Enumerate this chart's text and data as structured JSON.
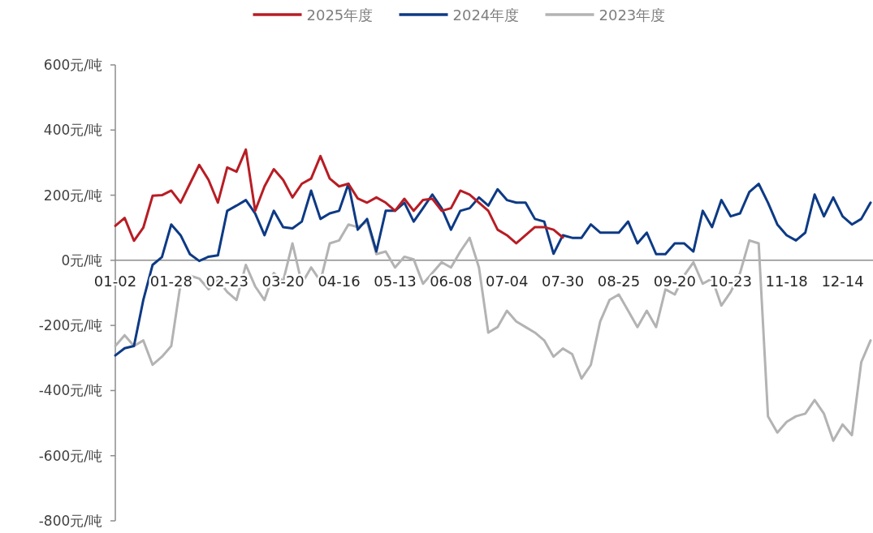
{
  "chart_data": {
    "type": "line",
    "categories": [
      "01-02",
      null,
      null,
      null,
      null,
      null,
      "01-28",
      null,
      null,
      null,
      null,
      null,
      "02-23",
      null,
      null,
      null,
      null,
      null,
      "03-20",
      null,
      null,
      null,
      null,
      null,
      "04-16",
      null,
      null,
      null,
      null,
      null,
      "05-13",
      null,
      null,
      null,
      null,
      null,
      "06-08",
      null,
      null,
      null,
      null,
      null,
      "07-04",
      null,
      null,
      null,
      null,
      null,
      "07-30",
      null,
      null,
      null,
      null,
      null,
      "08-25",
      null,
      null,
      null,
      null,
      null,
      "09-20",
      null,
      null,
      null,
      null,
      null,
      "10-23",
      null,
      null,
      null,
      null,
      null,
      "11-18",
      null,
      null,
      null,
      null,
      null,
      "12-14",
      null,
      null,
      null
    ],
    "series": [
      {
        "name": "2025年度",
        "color": "#b81d24",
        "values": [
          106,
          130,
          60,
          100,
          198,
          200,
          214,
          177,
          235,
          293,
          247,
          177,
          285,
          272,
          340,
          152,
          227,
          280,
          247,
          193,
          235,
          251,
          320,
          251,
          227,
          235,
          190,
          177,
          193,
          177,
          152,
          189,
          152,
          185,
          189,
          152,
          160,
          214,
          202,
          177,
          152,
          94,
          77,
          52,
          77,
          102,
          102,
          94,
          70,
          null,
          null,
          null,
          null,
          null,
          null,
          null,
          null,
          null,
          null,
          null,
          null,
          null,
          null,
          null,
          null,
          null,
          null,
          null,
          null,
          null,
          null,
          null,
          null,
          null,
          null,
          null,
          null,
          null,
          null,
          null,
          null,
          null
        ]
      },
      {
        "name": "2024年度",
        "color": "#0d3a85",
        "values": [
          -292,
          -270,
          -263,
          -122,
          -14,
          10,
          110,
          77,
          19,
          -2,
          11,
          15,
          152,
          168,
          185,
          144,
          77,
          152,
          102,
          98,
          119,
          214,
          127,
          144,
          152,
          235,
          94,
          127,
          27,
          152,
          152,
          177,
          119,
          160,
          202,
          160,
          94,
          152,
          160,
          193,
          168,
          218,
          185,
          177,
          177,
          127,
          119,
          20,
          77,
          69,
          69,
          110,
          85,
          85,
          85,
          119,
          52,
          85,
          19,
          19,
          52,
          52,
          27,
          152,
          102,
          185,
          135,
          144,
          210,
          235,
          177,
          110,
          77,
          61,
          85,
          202,
          135,
          193,
          135,
          110,
          127,
          177
        ]
      },
      {
        "name": "2023年度",
        "color": "#b3b3b3",
        "values": [
          -263,
          -230,
          -263,
          -246,
          -321,
          -296,
          -263,
          -72,
          -47,
          -56,
          -89,
          -60,
          -97,
          -122,
          -14,
          -80,
          -122,
          -39,
          -64,
          52,
          -72,
          -22,
          -64,
          52,
          61,
          110,
          102,
          119,
          19,
          27,
          -22,
          11,
          3,
          -72,
          -39,
          -6,
          -22,
          27,
          69,
          -22,
          -222,
          -205,
          -155,
          -188,
          -205,
          -222,
          -246,
          -296,
          -271,
          -288,
          -363,
          -321,
          -188,
          -122,
          -105,
          -155,
          -205,
          -155,
          -205,
          -89,
          -105,
          -47,
          -6,
          -72,
          -56,
          -139,
          -97,
          -39,
          61,
          52,
          -479,
          -529,
          -496,
          -479,
          -471,
          -429,
          -471,
          -554,
          -504,
          -537,
          -313,
          -246
        ]
      }
    ],
    "ylim": [
      -800,
      600
    ],
    "yticks": [
      {
        "value": -800,
        "label": "-800元/吨"
      },
      {
        "value": -600,
        "label": "-600元/吨"
      },
      {
        "value": -400,
        "label": "-400元/吨"
      },
      {
        "value": -200,
        "label": "-200元/吨"
      },
      {
        "value": 0,
        "label": "0元/吨"
      },
      {
        "value": 200,
        "label": "200元/吨"
      },
      {
        "value": 400,
        "label": "400元/吨"
      },
      {
        "value": 600,
        "label": "600元/吨"
      }
    ],
    "legend": "top"
  }
}
